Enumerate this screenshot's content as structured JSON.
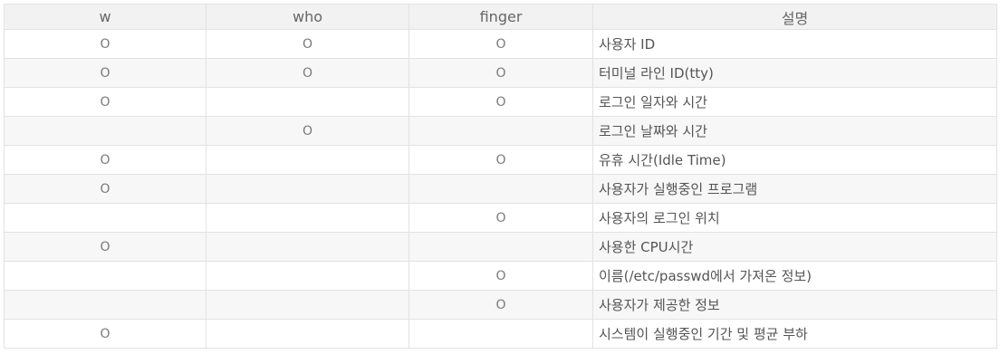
{
  "table": {
    "headers": [
      "w",
      "who",
      "finger",
      "설명"
    ],
    "rows": [
      {
        "w": "O",
        "who": "O",
        "finger": "O",
        "desc": "사용자 ID"
      },
      {
        "w": "O",
        "who": "O",
        "finger": "O",
        "desc": "터미널 라인 ID(tty)"
      },
      {
        "w": "O",
        "who": "",
        "finger": "O",
        "desc": "로그인 일자와 시간"
      },
      {
        "w": "",
        "who": "O",
        "finger": "",
        "desc": "로그인 날짜와 시간"
      },
      {
        "w": "O",
        "who": "",
        "finger": "O",
        "desc": "유휴 시간(Idle Time)"
      },
      {
        "w": "O",
        "who": "",
        "finger": "",
        "desc": "사용자가 실행중인 프로그램"
      },
      {
        "w": "",
        "who": "",
        "finger": "O",
        "desc": "사용자의 로그인 위치"
      },
      {
        "w": "O",
        "who": "",
        "finger": "",
        "desc": "사용한 CPU시간"
      },
      {
        "w": "",
        "who": "",
        "finger": "O",
        "desc": "이름(/etc/passwd에서 가져온 정보)"
      },
      {
        "w": "",
        "who": "",
        "finger": "O",
        "desc": "사용자가 제공한 정보"
      },
      {
        "w": "O",
        "who": "",
        "finger": "",
        "desc": "시스템이 실행중인 기간 및 평균 부하"
      }
    ]
  }
}
